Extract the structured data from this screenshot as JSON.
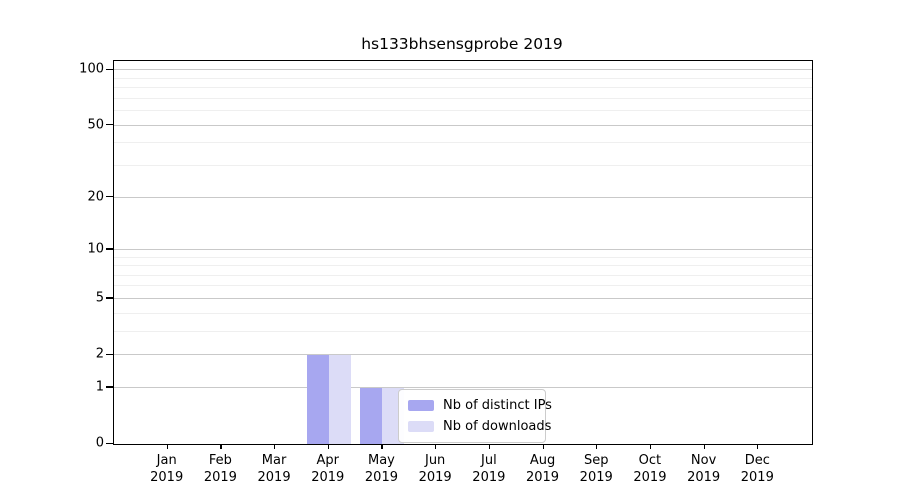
{
  "title": "hs133bhsensgprobe 2019",
  "chart_data": {
    "type": "bar",
    "title": "hs133bhsensgprobe 2019",
    "xlabel": "",
    "ylabel": "",
    "yscale": "log10(value+1)",
    "ylim": [
      0,
      112
    ],
    "grid": true,
    "legend_position": "lower center (inside plot)",
    "categories": [
      {
        "month": "Jan",
        "year": "2019"
      },
      {
        "month": "Feb",
        "year": "2019"
      },
      {
        "month": "Mar",
        "year": "2019"
      },
      {
        "month": "Apr",
        "year": "2019"
      },
      {
        "month": "May",
        "year": "2019"
      },
      {
        "month": "Jun",
        "year": "2019"
      },
      {
        "month": "Jul",
        "year": "2019"
      },
      {
        "month": "Aug",
        "year": "2019"
      },
      {
        "month": "Sep",
        "year": "2019"
      },
      {
        "month": "Oct",
        "year": "2019"
      },
      {
        "month": "Nov",
        "year": "2019"
      },
      {
        "month": "Dec",
        "year": "2019"
      }
    ],
    "yticks": [
      0,
      1,
      2,
      5,
      10,
      20,
      50,
      100
    ],
    "minor_gridlines": [
      3,
      4,
      6,
      7,
      8,
      9,
      30,
      40,
      60,
      70,
      80,
      90
    ],
    "series": [
      {
        "name": "Nb of distinct IPs",
        "color": "#a7a7f0",
        "values": [
          0,
          0,
          0,
          2,
          1,
          0,
          0,
          0,
          0,
          0,
          0,
          0
        ]
      },
      {
        "name": "Nb of downloads",
        "color": "#dcdcf7",
        "values": [
          0,
          0,
          0,
          2,
          1,
          0,
          0,
          0,
          0,
          0,
          0,
          0
        ]
      }
    ]
  }
}
